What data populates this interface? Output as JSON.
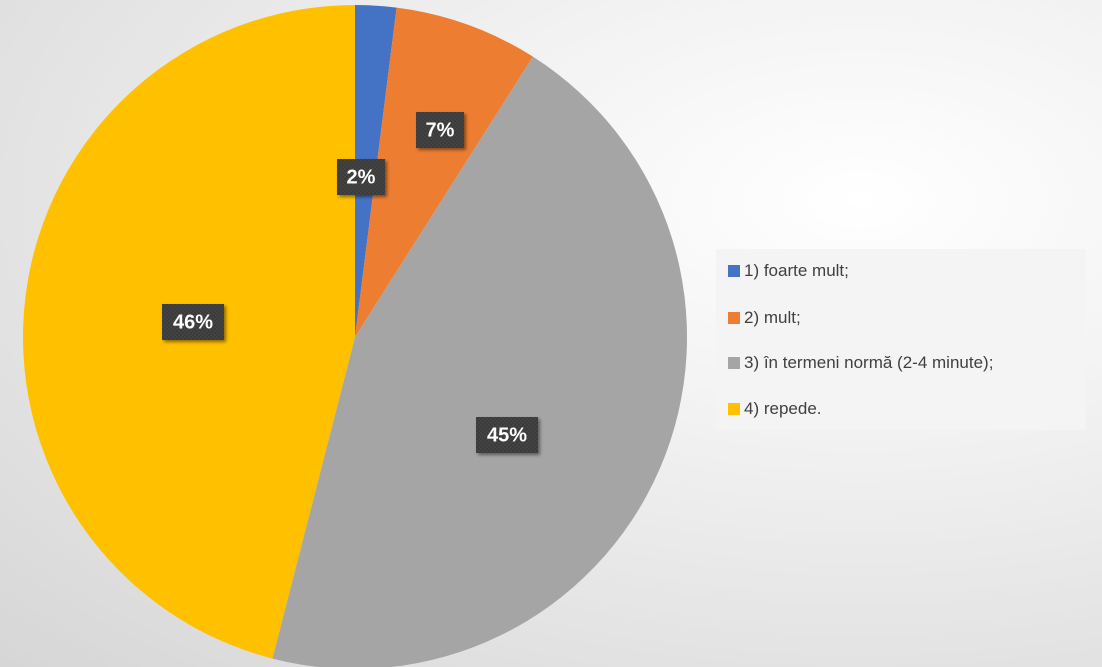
{
  "chart_data": {
    "type": "pie",
    "title": "",
    "slices": [
      {
        "label": "1) foarte mult;",
        "value": 2,
        "data_label": "2%",
        "color": "#4472C4"
      },
      {
        "label": "2) mult;",
        "value": 7,
        "data_label": "7%",
        "color": "#ED7D31"
      },
      {
        "label": "3) în termeni normă (2-4 minute);",
        "value": 45,
        "data_label": "45%",
        "color": "#A5A5A5"
      },
      {
        "label": "4) repede.",
        "value": 46,
        "data_label": "46%",
        "color": "#FFC000"
      }
    ],
    "legend_position": "right",
    "data_label_style": {
      "background": "#404040",
      "text_color": "#ffffff"
    }
  }
}
